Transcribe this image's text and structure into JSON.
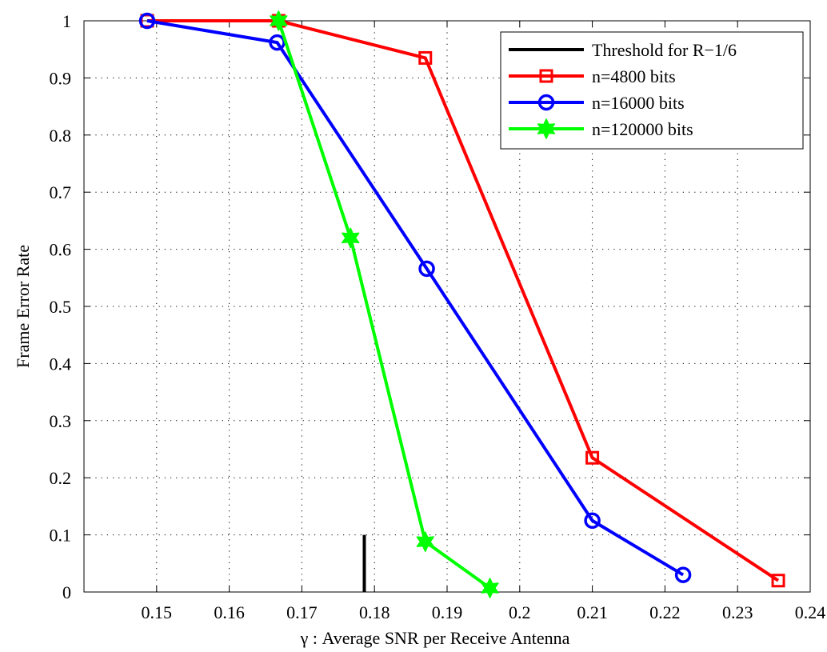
{
  "chart_data": {
    "type": "line",
    "title": "",
    "xlabel": "γ : Average SNR per Receive Antenna",
    "ylabel": "Frame Error Rate",
    "xlim": [
      0.14,
      0.24
    ],
    "ylim": [
      0,
      1
    ],
    "xticks": [
      0.15,
      0.16,
      0.17,
      0.18,
      0.19,
      0.2,
      0.21,
      0.22,
      0.23,
      0.24
    ],
    "xtick_labels": [
      "0.15",
      "0.16",
      "0.17",
      "0.18",
      "0.19",
      "0.2",
      "0.21",
      "0.22",
      "0.23",
      "0.24"
    ],
    "yticks": [
      0,
      0.1,
      0.2,
      0.3,
      0.4,
      0.5,
      0.6,
      0.7,
      0.8,
      0.9,
      1
    ],
    "ytick_labels": [
      "0",
      "0.1",
      "0.2",
      "0.3",
      "0.4",
      "0.5",
      "0.6",
      "0.7",
      "0.8",
      "0.9",
      "1"
    ],
    "grid": true,
    "legend_position": "top-right",
    "threshold": {
      "name": "Threshold for R−1/6",
      "x": 0.1786,
      "y_range": [
        0,
        0.1
      ],
      "color": "#000000"
    },
    "series": [
      {
        "name": "n=4800 bits",
        "color": "#ff0000",
        "marker": "square",
        "x": [
          0.1487,
          0.1668,
          0.187,
          0.21,
          0.2356
        ],
        "y": [
          1.0,
          1.0,
          0.935,
          0.235,
          0.02
        ]
      },
      {
        "name": "n=16000 bits",
        "color": "#0000ff",
        "marker": "circle",
        "x": [
          0.1487,
          0.1666,
          0.1872,
          0.21,
          0.2225
        ],
        "y": [
          1.0,
          0.962,
          0.566,
          0.125,
          0.03
        ]
      },
      {
        "name": "n=120000 bits",
        "color": "#00ff00",
        "marker": "hexagram",
        "x": [
          0.1668,
          0.1767,
          0.187,
          0.1959
        ],
        "y": [
          1.0,
          0.62,
          0.088,
          0.007
        ]
      }
    ]
  }
}
